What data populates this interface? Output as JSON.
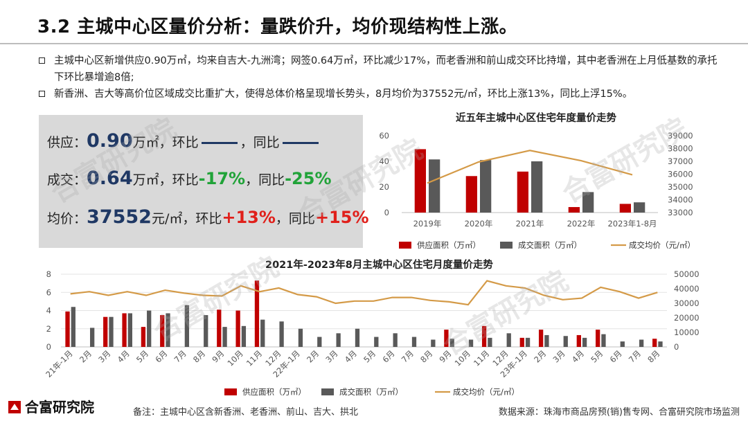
{
  "slide": {
    "title": "3.2 主城中心区量价分析：量跌价升，均价现结构性上涨。",
    "bullets": [
      "主城中心区新增供应0.90万㎡，均来自吉大-九洲湾；网签0.64万㎡，环比减少17%，而老香洲和前山成交环比持增，其中老香洲在上月低基数的承托下环比暴增逾8倍;",
      "新香洲、吉大等高价位区域成交比重扩大，使得总体价格呈现增长势头，8月均价为37552元/㎡，环比上涨13%，同比上浮15%。"
    ],
    "watermark": "合富研究院"
  },
  "kpis": {
    "supply": {
      "label": "供应：",
      "value": "0.90",
      "unit": "万㎡，环比",
      "mid": "，同比"
    },
    "deal": {
      "label": "成交：",
      "value": "0.64",
      "unit": "万㎡，环比",
      "mom": "-17%",
      "mid": "，同比",
      "yoy": "-25%"
    },
    "price": {
      "label": "均价：",
      "value": "37552",
      "unit": "元/㎡，环比",
      "mom": "+13%",
      "mid": "，同比",
      "yoy": "+15%"
    }
  },
  "footer": {
    "logo": "合富研究院",
    "note": "备注：主城中心区含新香洲、老香洲、前山、吉大、拱北",
    "source": "数据来源：珠海市商品房预(销)售专网、合富研究院市场监测"
  },
  "colors": {
    "supply": "#c00000",
    "deal": "#595959",
    "price": "#d49a47",
    "kpi_value": "#1f3864",
    "up": "#e0201b",
    "down": "#21a339"
  },
  "chart_data": [
    {
      "type": "bar",
      "title": "近五年主城中心区住宅年度量价走势",
      "categories": [
        "2019年",
        "2020年",
        "2021年",
        "2022年",
        "2023年1-8月"
      ],
      "series": [
        {
          "name": "供应面积（万㎡）",
          "kind": "bar",
          "axis": "left",
          "values": [
            49.5,
            28.5,
            32,
            4.3,
            6.8
          ]
        },
        {
          "name": "成交面积（万㎡）",
          "kind": "bar",
          "axis": "left",
          "values": [
            41.5,
            41,
            40,
            16,
            8
          ]
        },
        {
          "name": "成交均价（元/㎡）",
          "kind": "line",
          "axis": "right",
          "values": [
            35300,
            36950,
            37850,
            37050,
            35950
          ]
        }
      ],
      "ylim_left": [
        0,
        60
      ],
      "yticks_left": [
        0,
        20,
        40,
        60
      ],
      "ylim_right": [
        33000,
        39000
      ],
      "yticks_right": [
        33000,
        34000,
        35000,
        36000,
        37000,
        38000,
        39000
      ],
      "grid": false,
      "legend": "bottom"
    },
    {
      "type": "bar",
      "title": "2021年-2023年8月主城中心区住宅月度量价走势",
      "categories": [
        "21年-1月",
        "2月",
        "3月",
        "4月",
        "5月",
        "6月",
        "7月",
        "8月",
        "9月",
        "10月",
        "11月",
        "12月",
        "22年-1月",
        "2月",
        "3月",
        "4月",
        "5月",
        "6月",
        "7月",
        "8月",
        "9月",
        "10月",
        "11月",
        "12月",
        "23年-1月",
        "2月",
        "3月",
        "4月",
        "5月",
        "6月",
        "7月",
        "8月"
      ],
      "series": [
        {
          "name": "供应面积（万㎡）",
          "kind": "bar",
          "axis": "left",
          "values": [
            3.9,
            0,
            3.3,
            3.7,
            2.2,
            3.5,
            0,
            0,
            4.1,
            4.0,
            7.3,
            0,
            0,
            0,
            0,
            0,
            0,
            0,
            0,
            0,
            1.9,
            0,
            2.3,
            0,
            1.0,
            1.9,
            0,
            1.3,
            1.9,
            0,
            0,
            0.9
          ],
          "note": "months with no drawn supply bar recorded as 0"
        },
        {
          "name": "成交面积（万㎡）",
          "kind": "bar",
          "axis": "left",
          "values": [
            4.4,
            2.1,
            3.3,
            3.7,
            4.0,
            3.7,
            4.6,
            3.5,
            2.2,
            2.3,
            3.0,
            2.8,
            2.0,
            1.1,
            1.5,
            2.0,
            1.1,
            1.5,
            1.1,
            0.8,
            0.9,
            0.8,
            1.0,
            1.5,
            1.0,
            1.3,
            1.2,
            1.0,
            1.4,
            0.6,
            0.8,
            0.6
          ]
        },
        {
          "name": "成交均价（元/㎡）",
          "kind": "line",
          "axis": "right",
          "values": [
            36500,
            38000,
            35500,
            38000,
            35500,
            39000,
            37000,
            35500,
            35000,
            42000,
            38000,
            40500,
            36000,
            34500,
            30000,
            31500,
            31500,
            34000,
            34000,
            32000,
            31000,
            29000,
            45500,
            42000,
            40500,
            35500,
            32500,
            33500,
            41000,
            38000,
            33500,
            37500
          ]
        }
      ],
      "ylim_left": [
        0,
        8
      ],
      "yticks_left": [
        0,
        2,
        4,
        6,
        8
      ],
      "ylim_right": [
        0,
        50000
      ],
      "yticks_right": [
        0,
        10000,
        20000,
        30000,
        40000,
        50000
      ],
      "grid": true,
      "legend": "bottom"
    }
  ]
}
